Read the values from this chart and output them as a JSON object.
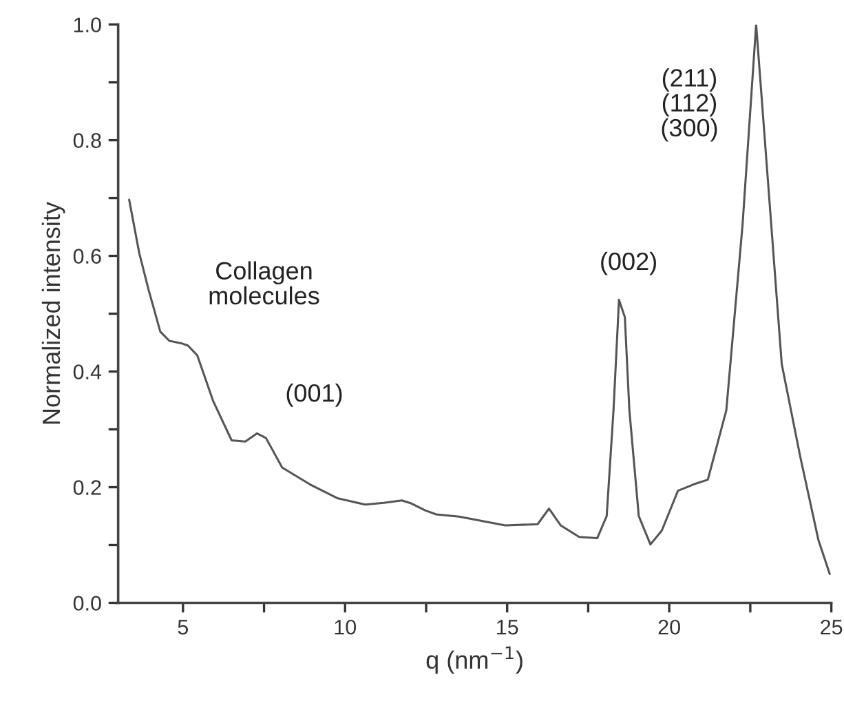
{
  "chart_data": {
    "type": "line",
    "xlabel": "q (nm$^{−1}$)",
    "ylabel": "Normalized intensity",
    "xlim": [
      3,
      25
    ],
    "ylim": [
      0,
      1.0
    ],
    "xticks": [
      5,
      {
        "value": 7.5,
        "label": null
      },
      10,
      {
        "value": 12.5,
        "label": null
      },
      15,
      {
        "value": 17.5,
        "label": null
      },
      20,
      {
        "value": 22.5,
        "label": null
      },
      25
    ],
    "yticks": [
      "0.0",
      {
        "value": 0.1,
        "label": null
      },
      0.2,
      {
        "value": 0.3,
        "label": null
      },
      0.4,
      {
        "value": 0.5,
        "label": null
      },
      0.6,
      {
        "value": 0.7,
        "label": null
      },
      0.8,
      {
        "value": 0.9,
        "label": null
      },
      "1.0"
    ],
    "grid": false,
    "legend": false,
    "marker": "none",
    "line_style": "solid",
    "series": [
      {
        "color": "#555555",
        "x": [
          3.34,
          3.65,
          3.94,
          4.3,
          4.58,
          4.94,
          5.15,
          5.44,
          5.93,
          6.5,
          6.92,
          7.28,
          7.56,
          8.06,
          8.91,
          9.76,
          10.62,
          11.19,
          11.75,
          12.04,
          12.47,
          12.81,
          13.52,
          14.94,
          15.94,
          16.29,
          16.65,
          17.22,
          17.78,
          18.07,
          18.28,
          18.45,
          18.63,
          18.77,
          19.06,
          19.42,
          19.77,
          20.27,
          20.76,
          21.19,
          21.76,
          22.26,
          22.68,
          23.04,
          23.47,
          24.04,
          24.6,
          24.95
        ],
        "values": [
          0.697,
          0.605,
          0.541,
          0.469,
          0.453,
          0.449,
          0.445,
          0.428,
          0.349,
          0.281,
          0.279,
          0.293,
          0.285,
          0.234,
          0.205,
          0.181,
          0.17,
          0.173,
          0.177,
          0.172,
          0.16,
          0.153,
          0.149,
          0.134,
          0.136,
          0.163,
          0.134,
          0.114,
          0.112,
          0.15,
          0.333,
          0.524,
          0.494,
          0.333,
          0.15,
          0.101,
          0.125,
          0.194,
          0.205,
          0.213,
          0.333,
          0.653,
          1.0,
          0.733,
          0.413,
          0.253,
          0.109,
          0.05
        ]
      }
    ],
    "annotations": [
      "Collagen\nmolecules",
      {
        "text": "(001)",
        "x": 7.28,
        "y": 0.293
      },
      {
        "text": "(002)",
        "x": 18.45,
        "y": 0.524
      },
      "(211)\n(112)\n(300)"
    ]
  }
}
